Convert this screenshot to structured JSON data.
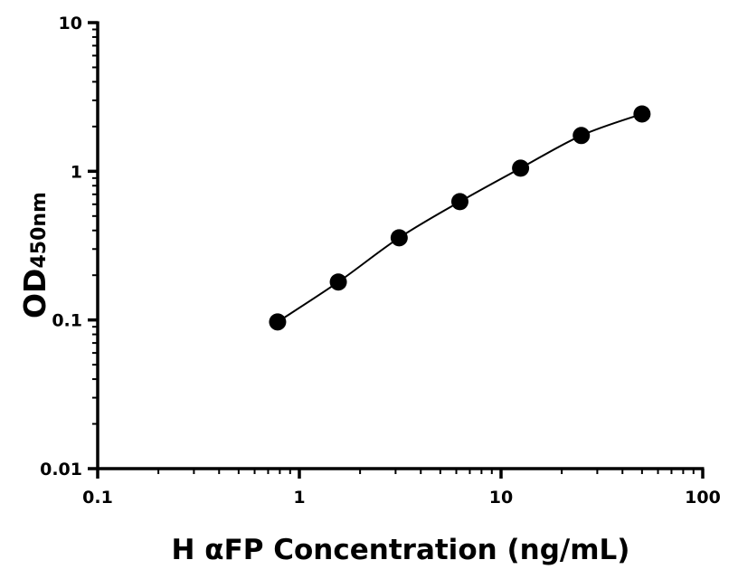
{
  "chart_data": {
    "type": "scatter",
    "title": "",
    "xlabel": "H αFP Concentration (ng/mL)",
    "ylabel": "OD",
    "ylabel_subscript": "450nm",
    "x_scale": "log",
    "y_scale": "log",
    "xlim": [
      0.1,
      100
    ],
    "ylim": [
      0.01,
      10
    ],
    "x_ticks": [
      "0.1",
      "1",
      "10",
      "100"
    ],
    "y_ticks": [
      "0.01",
      "0.1",
      "1",
      "10"
    ],
    "grid": false,
    "legend": "none",
    "fit_curve": true,
    "marker_color": "#000000",
    "series": [
      {
        "x": [
          0.78,
          1.56,
          3.125,
          6.25,
          12.5,
          25,
          50
        ],
        "y": [
          0.097,
          0.18,
          0.357,
          0.625,
          1.05,
          1.74,
          2.43
        ]
      }
    ]
  }
}
